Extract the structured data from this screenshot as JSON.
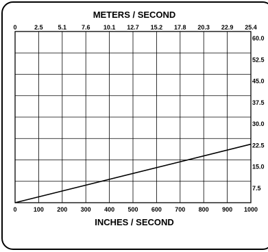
{
  "chart_data": {
    "type": "line",
    "xlabel": "INCHES / SECOND",
    "x2label": "METERS / SECOND",
    "x_ticks": [
      "0",
      "100",
      "200",
      "300",
      "400",
      "500",
      "600",
      "700",
      "800",
      "900",
      "1000"
    ],
    "x2_ticks": [
      "0",
      "2.5",
      "5.1",
      "7.6",
      "10.1",
      "12.7",
      "15.2",
      "17.8",
      "20.3",
      "22.9",
      "25.4"
    ],
    "y_ticks": [
      "60.0",
      "52.5",
      "45.0",
      "37.5",
      "30.0",
      "22.5",
      "15.0",
      "7.5"
    ],
    "xlim": [
      0,
      1000
    ],
    "ylim": [
      0,
      60
    ],
    "grid": true,
    "series": [
      {
        "x": [
          0,
          1000
        ],
        "y": [
          0,
          20.5
        ]
      }
    ]
  }
}
